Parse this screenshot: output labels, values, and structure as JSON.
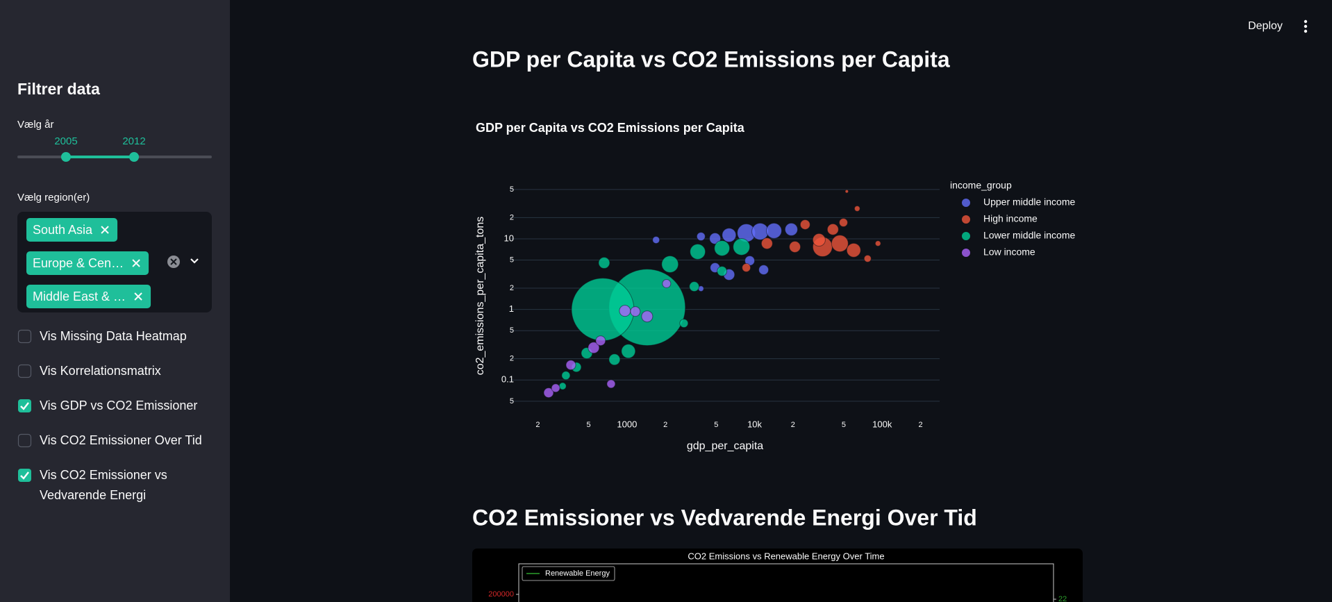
{
  "toolbar": {
    "deploy": "Deploy"
  },
  "sidebar": {
    "title": "Filtrer data",
    "year_slider": {
      "label": "Vælg år",
      "values": [
        2005,
        2012
      ]
    },
    "region_select": {
      "label": "Vælg region(er)",
      "selected": [
        "South Asia",
        "Europe & Cen…",
        "Middle East & …"
      ]
    },
    "checkboxes": [
      {
        "label": "Vis Missing Data Heatmap",
        "checked": false
      },
      {
        "label": "Vis Korrelationsmatrix",
        "checked": false
      },
      {
        "label": "Vis GDP vs CO2 Emissioner",
        "checked": true
      },
      {
        "label": "Vis CO2 Emissioner Over Tid",
        "checked": false
      },
      {
        "label": "Vis CO2 Emissioner vs Vedvarende Energi",
        "checked": true
      }
    ]
  },
  "sections": [
    {
      "heading": "GDP per Capita vs CO2 Emissions per Capita"
    },
    {
      "heading": "CO2 Emissioner vs Vedvarende Energi Over Tid"
    }
  ],
  "chart_data": [
    {
      "type": "scatter",
      "title": "GDP per Capita vs CO2 Emissions per Capita",
      "x_label": "gdp_per_capita",
      "y_label": "co2_emissions_per_capita_tons",
      "x_log": true,
      "y_log": true,
      "grid": true,
      "legend_title": "income_group",
      "legend_position": "right",
      "xlim": [
        122,
        282000
      ],
      "ylim": [
        0.038,
        64
      ],
      "xticks": [
        {
          "value": 200,
          "label": "2"
        },
        {
          "value": 500,
          "label": "5"
        },
        1000,
        {
          "value": 2000,
          "label": "2"
        },
        {
          "value": 5000,
          "label": "5"
        },
        {
          "value": 10000,
          "label": "10k"
        },
        {
          "value": 20000,
          "label": "2"
        },
        {
          "value": 50000,
          "label": "5"
        },
        {
          "value": 100000,
          "label": "100k"
        },
        {
          "value": 200000,
          "label": "2"
        }
      ],
      "yticks": [
        {
          "value": 0.05,
          "label": "5"
        },
        0.1,
        {
          "value": 0.2,
          "label": "2"
        },
        {
          "value": 0.5,
          "label": "5"
        },
        1,
        {
          "value": 2,
          "label": "2"
        },
        {
          "value": 5,
          "label": "5"
        },
        10,
        {
          "value": 20,
          "label": "2"
        },
        {
          "value": 50,
          "label": "5"
        }
      ],
      "series": [
        {
          "name": "Upper middle income",
          "color": "#636efa",
          "x": [
            8610,
            11050,
            14190,
            6310,
            4900,
            3800,
            6310,
            4900,
            9160,
            11780,
            3800,
            1690,
            19400
          ],
          "values": [
            12.1,
            12.7,
            13,
            11.3,
            10.1,
            10.8,
            3.11,
            3.9,
            4.9,
            3.64,
            1.97,
            9.65,
            13.6
          ],
          "sizes": [
            66,
            56,
            47,
            39,
            25,
            14,
            25,
            19,
            19,
            19,
            6,
            10,
            32
          ]
        },
        {
          "name": "High income",
          "color": "#ef553b",
          "x": [
            34100,
            46600,
            59800,
            32000,
            41100,
            24900,
            20700,
            12500,
            8610,
            76900,
            63700,
            49700,
            92700,
            52800
          ],
          "values": [
            7.7,
            8.6,
            6.9,
            9.66,
            13.6,
            15.9,
            7.7,
            8.6,
            3.9,
            5.25,
            26.8,
            17,
            8.6,
            47
          ],
          "sizes": [
            77,
            56,
            39,
            32,
            25,
            19,
            25,
            25,
            14,
            10,
            6,
            14,
            6,
            2
          ]
        },
        {
          "name": "Lower middle income",
          "color": "#00cc96",
          "x": [
            1438,
            646,
            1025,
            798,
            484,
            401,
            332,
            2173,
            3581,
            5555,
            7890,
            3365,
            2793,
            5555,
            662,
            313
          ],
          "values": [
            1.07,
            1.0,
            0.256,
            0.195,
            0.24,
            0.152,
            0.116,
            4.37,
            6.57,
            7.36,
            7.7,
            2.11,
            0.636,
            3.48,
            4.57,
            0.082
          ],
          "sizes": [
            1180,
            790,
            39,
            25,
            25,
            19,
            14,
            56,
            47,
            47,
            56,
            19,
            14,
            19,
            25,
            10
          ]
        },
        {
          "name": "Low income",
          "color": "#ab63fa",
          "x": [
            243,
            276,
            363,
            548,
            621,
            963,
            1162,
            1438,
            2042,
            750
          ],
          "values": [
            0.066,
            0.077,
            0.163,
            0.287,
            0.36,
            0.955,
            0.934,
            0.796,
            2.32,
            0.088
          ],
          "sizes": [
            19,
            14,
            19,
            25,
            19,
            25,
            19,
            25,
            14,
            14
          ]
        }
      ]
    },
    {
      "type": "area",
      "title": "CO2 Emissions vs Renewable Energy Over Time",
      "series": [
        {
          "name": "Renewable Energy",
          "color": "#2ca02c"
        }
      ],
      "yticks": [
        200000
      ],
      "y_color": "#d62728",
      "y2ticks": [
        22
      ],
      "y2_color": "#2ca02c"
    }
  ]
}
